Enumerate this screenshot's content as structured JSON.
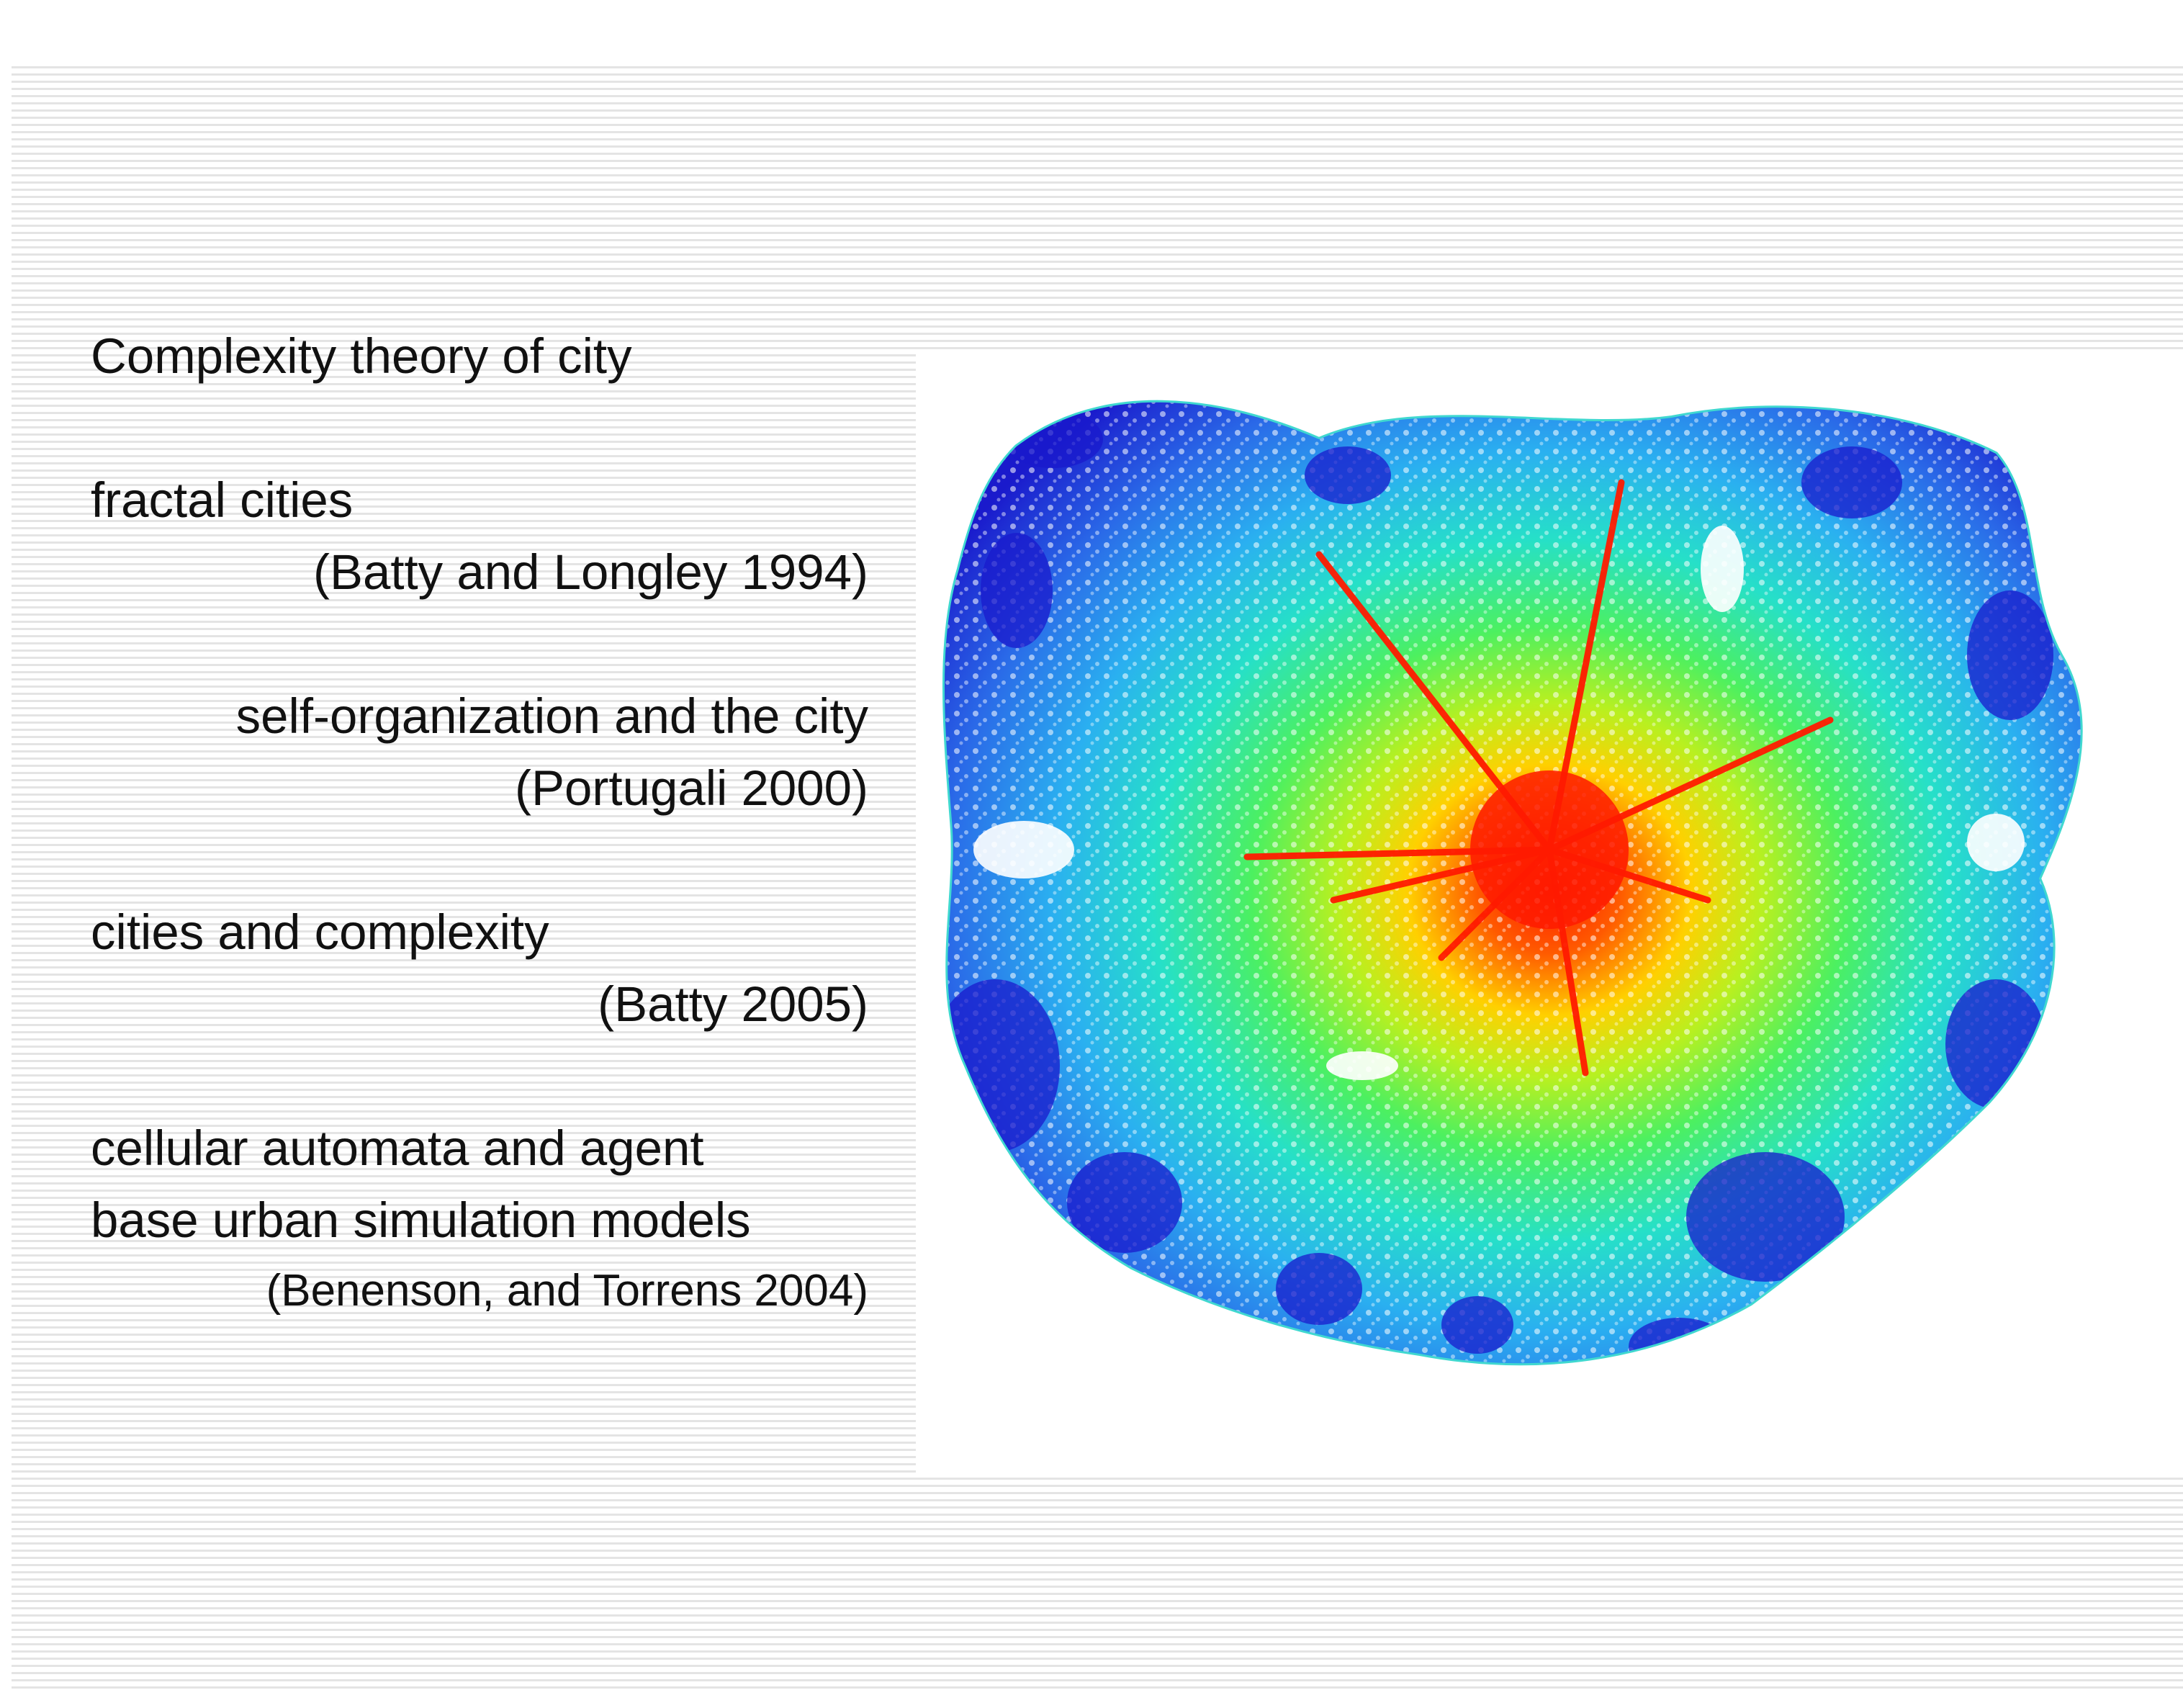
{
  "slide": {
    "heading": "Complexity theory of city",
    "items": [
      {
        "title": "fractal cities",
        "citation": "(Batty and Longley 1994)"
      },
      {
        "title": "self-organization and the city",
        "citation": "(Portugali 2000)"
      },
      {
        "title": "cities and complexity",
        "citation": "(Batty 2005)"
      },
      {
        "title_line1": "cellular automata and agent",
        "title_line2": "base urban simulation models",
        "citation": "(Benenson, and Torrens 2004)"
      }
    ]
  },
  "figure": {
    "subject": "network-density-map",
    "color_scale": [
      "#1a1acc",
      "#2a6ae8",
      "#2ab0f0",
      "#26e0c8",
      "#4cf060",
      "#b8f020",
      "#ffe000",
      "#ff8800",
      "#ff1a00"
    ]
  }
}
